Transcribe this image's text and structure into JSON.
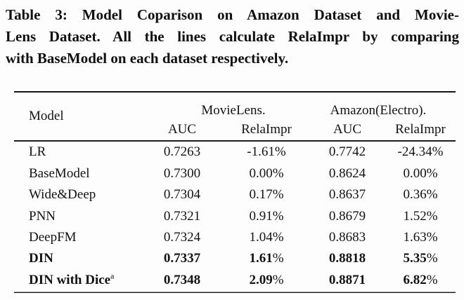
{
  "caption": {
    "lines": [
      "Table 3: Model Coparison on Amazon Dataset and Movie-",
      "Lens Dataset. All the lines calculate RelaImpr by comparing",
      "with BaseModel on each dataset respectively."
    ]
  },
  "table": {
    "header": {
      "model_label": "Model",
      "groups": [
        {
          "label": "MovieLens.",
          "sub": [
            "AUC",
            "RelaImpr"
          ]
        },
        {
          "label": "Amazon(Electro).",
          "sub": [
            "AUC",
            "RelaImpr"
          ]
        }
      ]
    },
    "rows": [
      {
        "model": "LR",
        "sup": "",
        "bold": false,
        "cells": [
          {
            "v": "0.7263",
            "s": ""
          },
          {
            "v": "-1.61",
            "s": "%"
          },
          {
            "v": "0.7742",
            "s": ""
          },
          {
            "v": "-24.34",
            "s": "%"
          }
        ]
      },
      {
        "model": "BaseModel",
        "sup": "",
        "bold": false,
        "cells": [
          {
            "v": "0.7300",
            "s": ""
          },
          {
            "v": "0.00",
            "s": "%"
          },
          {
            "v": "0.8624",
            "s": ""
          },
          {
            "v": "0.00",
            "s": "%"
          }
        ]
      },
      {
        "model": "Wide&Deep",
        "sup": "",
        "bold": false,
        "cells": [
          {
            "v": "0.7304",
            "s": ""
          },
          {
            "v": "0.17",
            "s": "%"
          },
          {
            "v": "0.8637",
            "s": ""
          },
          {
            "v": "0.36",
            "s": "%"
          }
        ]
      },
      {
        "model": "PNN",
        "sup": "",
        "bold": false,
        "cells": [
          {
            "v": "0.7321",
            "s": ""
          },
          {
            "v": "0.91",
            "s": "%"
          },
          {
            "v": "0.8679",
            "s": ""
          },
          {
            "v": "1.52",
            "s": "%"
          }
        ]
      },
      {
        "model": "DeepFM",
        "sup": "",
        "bold": false,
        "cells": [
          {
            "v": "0.7324",
            "s": ""
          },
          {
            "v": "1.04",
            "s": "%"
          },
          {
            "v": "0.8683",
            "s": ""
          },
          {
            "v": "1.63",
            "s": "%"
          }
        ]
      },
      {
        "model": "DIN",
        "sup": "",
        "bold": true,
        "cells": [
          {
            "v": "0.7337",
            "s": ""
          },
          {
            "v": "1.61",
            "s": "%"
          },
          {
            "v": "0.8818",
            "s": ""
          },
          {
            "v": "5.35",
            "s": "%"
          }
        ]
      },
      {
        "model": "DIN with Dice",
        "sup": "a",
        "bold": true,
        "cells": [
          {
            "v": "0.7348",
            "s": ""
          },
          {
            "v": "2.09",
            "s": "%"
          },
          {
            "v": "0.8871",
            "s": ""
          },
          {
            "v": "6.82",
            "s": "%"
          }
        ]
      }
    ]
  }
}
